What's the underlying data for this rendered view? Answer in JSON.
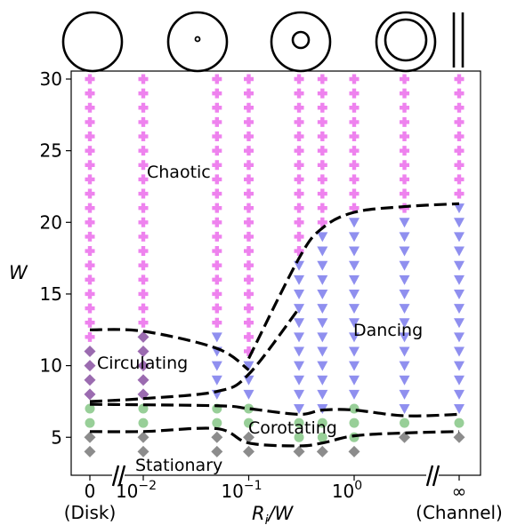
{
  "chart_data": {
    "type": "scatter",
    "xlabel": "R_i/W",
    "ylabel": "W",
    "ylim": [
      2.5,
      30.5
    ],
    "yticks": [
      5,
      10,
      15,
      20,
      25,
      30
    ],
    "x_categories": [
      {
        "key": "disk",
        "label": "0",
        "sublabel": "(Disk)"
      },
      {
        "key": "r1e-2",
        "label": "10",
        "exp": "−2"
      },
      {
        "key": "r1e-1",
        "label": "10",
        "exp": "−1"
      },
      {
        "key": "r1e0",
        "label": "10",
        "exp": "0"
      },
      {
        "key": "channel",
        "label": "∞",
        "sublabel": "(Channel)"
      }
    ],
    "x_columns_ri_over_w": [
      "0",
      0.01,
      0.05,
      0.1,
      0.3,
      0.5,
      1,
      3,
      "∞"
    ],
    "regions": [
      {
        "name": "Chaotic",
        "color": "#ee82ee",
        "marker": "plus"
      },
      {
        "name": "Circulating",
        "color": "#9b6bb0",
        "marker": "diamond"
      },
      {
        "name": "Dancing",
        "color": "#8f8fef",
        "marker": "triangle-down"
      },
      {
        "name": "Corotating",
        "color": "#98cf98",
        "marker": "circle"
      },
      {
        "name": "Stationary",
        "color": "#8c8c8c",
        "marker": "diamond"
      }
    ],
    "region_labels": {
      "chaotic": "Chaotic",
      "circulating": "Circulating",
      "dancing": "Dancing",
      "corotating": "Corotating",
      "stationary": "Stationary"
    },
    "points": [
      {
        "x": "0",
        "stationary": [
          4,
          5
        ],
        "corotating": [
          6,
          7
        ],
        "circulating": [
          8,
          9,
          10,
          11
        ],
        "chaotic": [
          12,
          13,
          14,
          15,
          16,
          17,
          18,
          19,
          20,
          21,
          22,
          23,
          24,
          25,
          26,
          27,
          28,
          29,
          30
        ]
      },
      {
        "x": 0.01,
        "stationary": [
          4,
          5
        ],
        "corotating": [
          6,
          7
        ],
        "circulating": [
          8,
          9,
          10,
          11,
          12
        ],
        "chaotic": [
          13,
          14,
          15,
          16,
          17,
          18,
          19,
          20,
          21,
          22,
          23,
          24,
          25,
          26,
          27,
          28,
          29,
          30
        ]
      },
      {
        "x": 0.05,
        "stationary": [
          4,
          5
        ],
        "corotating": [
          6,
          7
        ],
        "dancing": [
          8,
          9,
          10,
          11,
          12
        ],
        "chaotic": [
          13,
          14,
          15,
          16,
          17,
          18,
          19,
          20,
          21,
          22,
          23,
          24,
          25,
          26,
          27,
          28,
          29,
          30
        ]
      },
      {
        "x": 0.1,
        "stationary": [
          4,
          5
        ],
        "corotating": [
          6,
          7
        ],
        "dancing": [
          8,
          9,
          10
        ],
        "chaotic": [
          11,
          12,
          13,
          14,
          15,
          16,
          17,
          18,
          19,
          20,
          21,
          22,
          23,
          24,
          25,
          26,
          27,
          28,
          29,
          30
        ]
      },
      {
        "x": 0.3,
        "stationary": [
          4
        ],
        "corotating": [
          5,
          6
        ],
        "dancing": [
          7,
          8,
          9,
          10,
          11,
          12,
          13,
          14,
          15,
          16,
          17
        ],
        "chaotic": [
          18,
          19,
          20,
          21,
          22,
          23,
          24,
          25,
          26,
          27,
          28,
          29,
          30
        ]
      },
      {
        "x": 0.5,
        "stationary": [
          4
        ],
        "corotating": [
          5,
          6
        ],
        "dancing": [
          7,
          8,
          9,
          10,
          11,
          12,
          13,
          14,
          15,
          16,
          17,
          18,
          19
        ],
        "chaotic": [
          20,
          21,
          22,
          23,
          24,
          25,
          26,
          27,
          28,
          29,
          30
        ]
      },
      {
        "x": 1,
        "stationary": [
          4
        ],
        "corotating": [
          5,
          6,
          7
        ],
        "dancing": [
          8,
          9,
          10,
          11,
          12,
          13,
          14,
          15,
          16,
          17,
          18,
          19,
          20
        ],
        "chaotic": [
          21,
          22,
          23,
          24,
          25,
          26,
          27,
          28,
          29,
          30
        ]
      },
      {
        "x": 3,
        "stationary": [
          5
        ],
        "corotating": [
          6
        ],
        "dancing": [
          7,
          8,
          9,
          10,
          11,
          12,
          13,
          14,
          15,
          16,
          17,
          18,
          19,
          20
        ],
        "chaotic": [
          21,
          22,
          23,
          24,
          25,
          26,
          27,
          28,
          29,
          30
        ]
      },
      {
        "x": "∞",
        "stationary": [
          5
        ],
        "corotating": [
          6
        ],
        "dancing": [
          7,
          8,
          9,
          10,
          11,
          12,
          13,
          14,
          15,
          16,
          17,
          18,
          19,
          20,
          21
        ],
        "chaotic": [
          22,
          23,
          24,
          25,
          26,
          27,
          28,
          29,
          30
        ]
      }
    ],
    "boundaries": [
      {
        "name": "chaotic-circulating",
        "x": [
          "0",
          0.01,
          0.05,
          0.1
        ],
        "y": [
          12.5,
          12.4,
          11.2,
          9.7
        ]
      },
      {
        "name": "chaotic-dancing",
        "x": [
          0.1,
          0.3,
          0.5,
          1,
          3,
          "∞"
        ],
        "y": [
          10.5,
          17.5,
          19.6,
          20.7,
          21.1,
          21.3
        ]
      },
      {
        "name": "circulating-corotating",
        "x": [
          "0",
          0.01,
          0.05,
          0.1,
          0.3
        ],
        "y": [
          7.5,
          7.7,
          8.2,
          9.4,
          14
        ]
      },
      {
        "name": "dancing-corotating",
        "x": [
          "0",
          0.05,
          0.1,
          0.3,
          0.5,
          1,
          3,
          "∞"
        ],
        "y": [
          7.3,
          7.2,
          7.0,
          6.6,
          6.9,
          6.9,
          6.5,
          6.6
        ]
      },
      {
        "name": "corotating-stationary",
        "x": [
          "0",
          0.01,
          0.05,
          0.1,
          0.3,
          0.5,
          1,
          3,
          "∞"
        ],
        "y": [
          5.4,
          5.4,
          5.6,
          4.6,
          4.4,
          4.6,
          5.1,
          5.3,
          5.4
        ]
      }
    ],
    "top_icons": [
      "disk",
      "small-inner-circle",
      "medium-inner-circle",
      "large-inner-circle",
      "parallel-lines"
    ]
  }
}
